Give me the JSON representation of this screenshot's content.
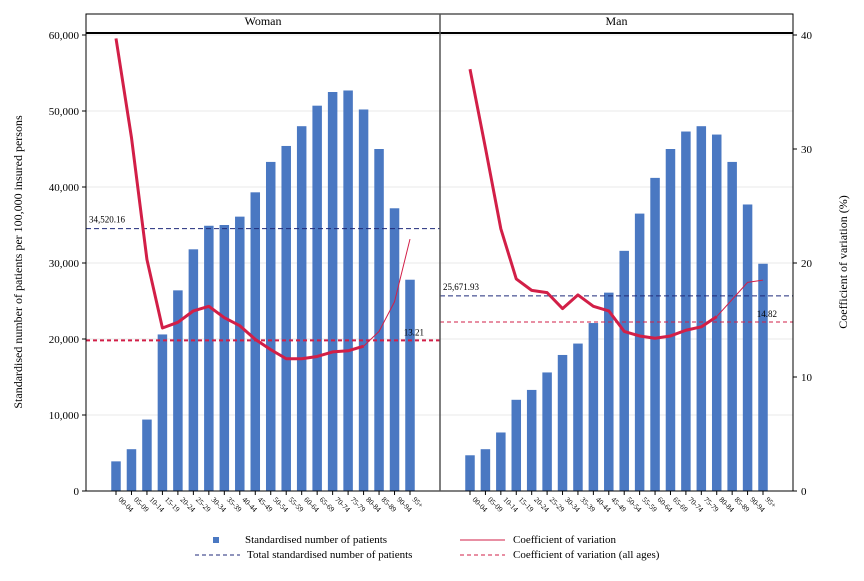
{
  "chart_data": {
    "type": "bar",
    "categories": [
      "00-04",
      "05-09",
      "10-14",
      "15-19",
      "20-24",
      "25-29",
      "30-34",
      "35-39",
      "40-44",
      "45-49",
      "50-54",
      "55-59",
      "60-64",
      "65-69",
      "70-74",
      "75-79",
      "80-84",
      "85-89",
      "90-94",
      "95+"
    ],
    "y_left_label": "Standardised number of patients per 100,000 insured persons",
    "y_right_label": "Coefficient of variation (%)",
    "y_left_ticks": [
      "0",
      "10,000",
      "20,000",
      "30,000",
      "40,000",
      "50,000",
      "60,000"
    ],
    "y_right_ticks": [
      "0",
      "10",
      "20",
      "30",
      "40"
    ],
    "ylim_left": [
      0,
      60000
    ],
    "ylim_right": [
      0,
      40
    ],
    "grid": true,
    "colors": {
      "bar": "#4a78c2",
      "total_line": "#1f2a7a",
      "cv": "#d21f47"
    },
    "panels": [
      {
        "title": "Woman",
        "patients": [
          3900,
          5500,
          9400,
          20600,
          26400,
          31800,
          34900,
          35000,
          36100,
          39300,
          43300,
          45400,
          48000,
          50700,
          52500,
          52700,
          50200,
          45000,
          37200,
          27800
        ],
        "cv": [
          39.7,
          31,
          20.3,
          14.3,
          14.8,
          15.8,
          16.2,
          15.2,
          14.5,
          13.3,
          12.4,
          11.6,
          11.6,
          11.8,
          12.2,
          12.3,
          12.7,
          14,
          16.6,
          22.1
        ],
        "cv_thin_from_index": 16,
        "total": 34520.16,
        "total_label": "34,520.16",
        "cv_all": 13.21,
        "cv_all_label": "13.21"
      },
      {
        "title": "Man",
        "patients": [
          4700,
          5500,
          7700,
          12000,
          13300,
          15600,
          17900,
          19400,
          22100,
          26100,
          31600,
          36500,
          41200,
          45000,
          47300,
          48000,
          46900,
          43300,
          37700,
          29900
        ],
        "cv": [
          37,
          30.1,
          23,
          18.6,
          17.6,
          17.4,
          16,
          17.2,
          16.2,
          15.8,
          14,
          13.6,
          13.4,
          13.6,
          14.1,
          14.4,
          15.3,
          16.8,
          18.3,
          18.5
        ],
        "cv_thin_from_index": 16,
        "total": 25671.93,
        "total_label": "25,671.93",
        "cv_all": 14.82,
        "cv_all_label": "14.82"
      }
    ],
    "legend": {
      "position": "bottom",
      "items": [
        {
          "label": "Standardised number of patients",
          "symbol": "square"
        },
        {
          "label": "Coefficient of variation",
          "symbol": "line"
        },
        {
          "label": "Total standardised number of patients",
          "symbol": "dash-navy"
        },
        {
          "label": "Coefficient of variation (all ages)",
          "symbol": "dash-red"
        }
      ]
    }
  }
}
